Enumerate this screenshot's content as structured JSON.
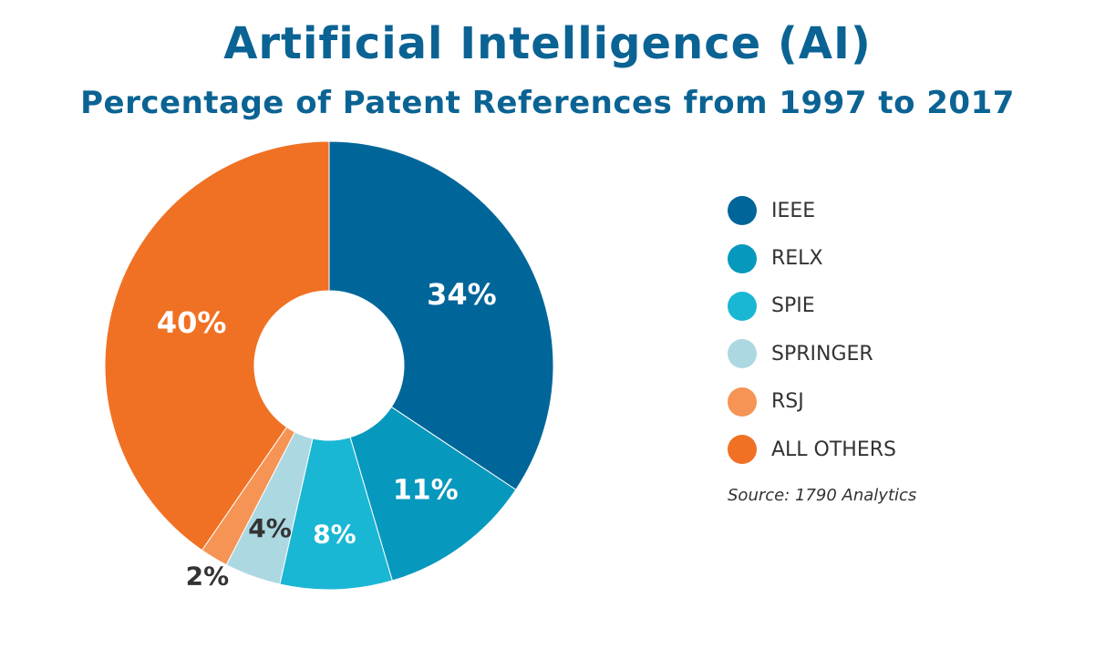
{
  "chart_data": {
    "type": "pie",
    "title": "Artificial Intelligence (AI)",
    "subtitle": "Percentage of Patent References from 1997 to 2017",
    "categories": [
      "IEEE",
      "RELX",
      "SPIE",
      "SPRINGER",
      "RSJ",
      "ALL OTHERS"
    ],
    "values": [
      34,
      11,
      8,
      4,
      2,
      40
    ],
    "value_labels": [
      "34%",
      "11%",
      "8%",
      "4%",
      "2%",
      "40%"
    ],
    "colors": [
      "#006699",
      "#0798bd",
      "#1ab7d4",
      "#acd8e2",
      "#f59455",
      "#f07123"
    ],
    "donut": true,
    "legend_position": "right",
    "source": "Source: 1790 Analytics"
  }
}
